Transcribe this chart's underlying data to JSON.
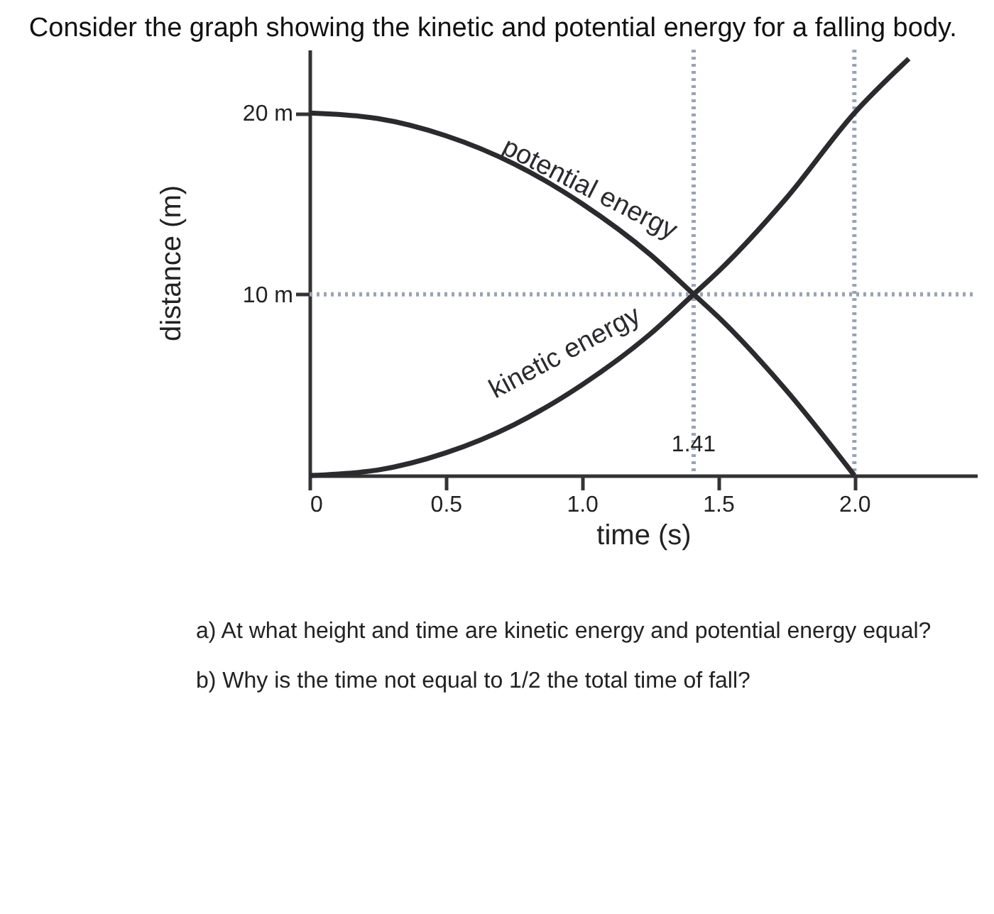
{
  "chart_data": {
    "type": "line",
    "title": "Consider the graph showing the kinetic and potential energy for a falling body.",
    "xlabel": "time (s)",
    "ylabel": "distance (m)",
    "xlim": [
      0,
      2.45
    ],
    "ylim": [
      0,
      23.5
    ],
    "xticks": [
      0,
      0.5,
      {
        "value": 1.0,
        "label": "1.0"
      },
      1.5,
      {
        "value": 2.0,
        "label": "2.0"
      }
    ],
    "yticks": [
      {
        "value": 10,
        "label": "10 m"
      },
      {
        "value": 20,
        "label": "20 m"
      }
    ],
    "grid": false,
    "marker": "none",
    "line_style": "solid",
    "series": [
      {
        "name": "potential energy",
        "color": "#2b2b2e",
        "x": [
          0,
          0.25,
          0.5,
          0.75,
          1.0,
          1.25,
          1.41,
          1.5,
          1.75,
          2.0
        ],
        "values": [
          20,
          19.7,
          18.75,
          17.2,
          15,
          12.2,
          10,
          8.75,
          4.7,
          0
        ]
      },
      {
        "name": "kinetic energy",
        "color": "#2b2b2e",
        "x": [
          0,
          0.25,
          0.5,
          0.75,
          1.0,
          1.25,
          1.41,
          1.5,
          1.75,
          2.0,
          2.2
        ],
        "values": [
          0,
          0.3,
          1.25,
          2.8,
          5,
          7.8,
          10,
          11.25,
          15.3,
          20,
          23
        ]
      }
    ],
    "ref_lines": [
      {
        "axis": "x",
        "value": 1.41,
        "label": "1.41",
        "color": "#9aa3b5",
        "line_style": "dotted"
      },
      {
        "axis": "x",
        "value": 2.0,
        "color": "#9aa3b5",
        "line_style": "dotted"
      },
      {
        "axis": "y",
        "value": 10,
        "color": "#9aa3b5",
        "line_style": "dotted"
      }
    ],
    "annotations": [
      "a) At what height and time are kinetic energy and potential energy equal?",
      "b) Why is the time not equal to 1/2 the total time of fall?"
    ]
  }
}
